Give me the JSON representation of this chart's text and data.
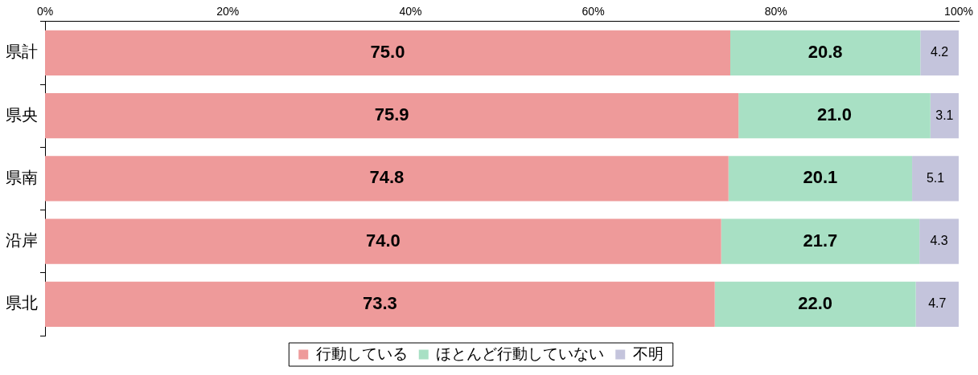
{
  "chart_data": {
    "type": "bar",
    "orientation": "horizontal",
    "stacked": true,
    "categories": [
      "県計",
      "県央",
      "県南",
      "沿岸",
      "県北"
    ],
    "series": [
      {
        "name": "行動している",
        "color": "#ee9a9a",
        "values": [
          75.0,
          75.9,
          74.8,
          74.0,
          73.3
        ],
        "value_labels": [
          "75.0",
          "75.9",
          "74.8",
          "74.0",
          "73.3"
        ]
      },
      {
        "name": "ほとんど行動していない",
        "color": "#a8e0c4",
        "values": [
          20.8,
          21.0,
          20.1,
          21.7,
          22.0
        ],
        "value_labels": [
          "20.8",
          "21.0",
          "20.1",
          "21.7",
          "22.0"
        ]
      },
      {
        "name": "不明",
        "color": "#c4c4dc",
        "values": [
          4.2,
          3.1,
          5.1,
          4.3,
          4.7
        ],
        "value_labels": [
          "4.2",
          "3.1",
          "5.1",
          "4.3",
          "4.7"
        ]
      }
    ],
    "xlim": [
      0,
      100
    ],
    "xticks": [
      {
        "value": 0,
        "label": "0%"
      },
      {
        "value": 20,
        "label": "20%"
      },
      {
        "value": 40,
        "label": "40%"
      },
      {
        "value": 60,
        "label": "60%"
      },
      {
        "value": 80,
        "label": "80%"
      },
      {
        "value": 100,
        "label": "100%"
      }
    ],
    "grid": false,
    "legend": "bottom"
  }
}
